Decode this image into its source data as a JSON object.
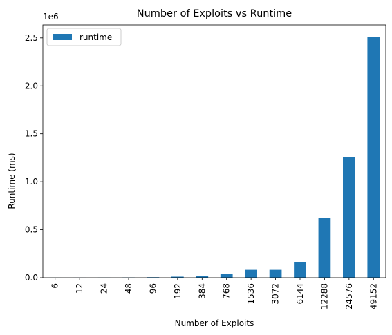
{
  "chart_data": {
    "type": "bar",
    "title": "Number of Exploits vs Runtime",
    "xlabel": "Number of Exploits",
    "ylabel": "Runtime (ms)",
    "y_offset_label": "1e6",
    "categories": [
      "6",
      "12",
      "24",
      "48",
      "96",
      "192",
      "384",
      "768",
      "1536",
      "3072",
      "6144",
      "12288",
      "24576",
      "49152"
    ],
    "series": [
      {
        "name": "runtime",
        "color": "#1f77b4",
        "values": [
          400,
          800,
          1500,
          3000,
          5500,
          11000,
          21000,
          43000,
          82000,
          82000,
          160000,
          625000,
          1255000,
          2510000
        ]
      }
    ],
    "ylim": [
      0,
      2635500
    ],
    "yticks": [
      0.0,
      0.5,
      1.0,
      1.5,
      2.0,
      2.5
    ],
    "ytick_labels": [
      "0.0",
      "0.5",
      "1.0",
      "1.5",
      "2.0",
      "2.5"
    ],
    "y_tick_scale": 1000000,
    "legend": {
      "position": "top-left"
    },
    "grid": false
  }
}
